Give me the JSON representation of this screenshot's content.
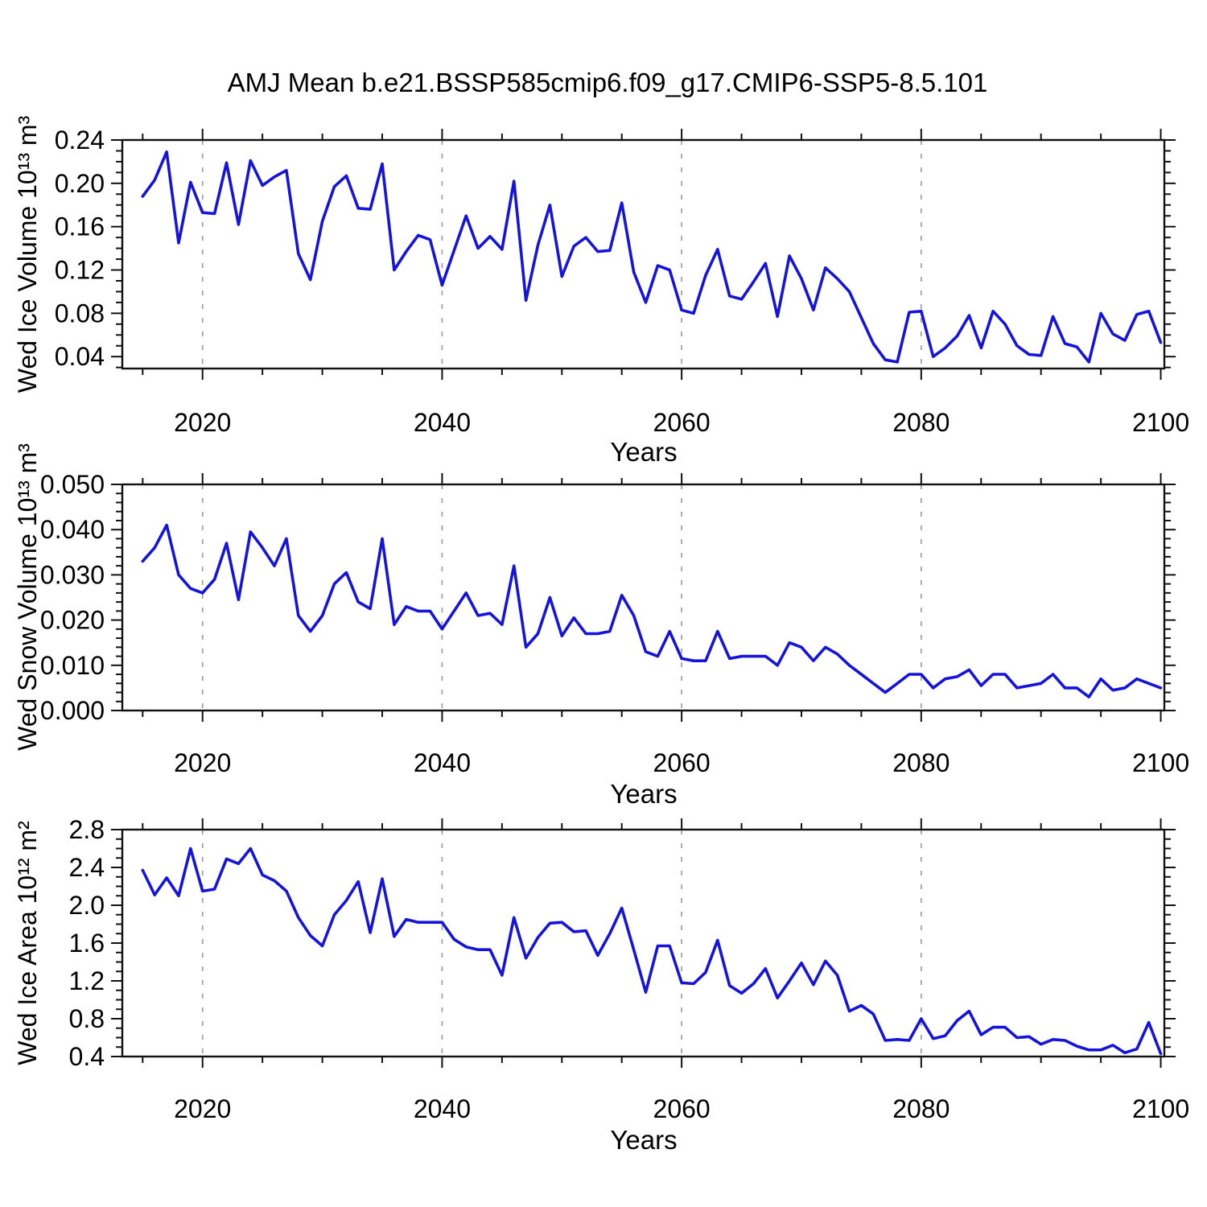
{
  "title": "AMJ Mean b.e21.BSSP585cmip6.f09_g17.CMIP6-SSP5-8.5.101",
  "colors": {
    "line": "#1414DC",
    "axis": "#111111",
    "grid": "#999999",
    "text": "#000000",
    "background": "#ffffff"
  },
  "chart_data": {
    "type": "line",
    "xlabel": "Years",
    "xlim": [
      2013.3,
      2100.3
    ],
    "x_ticks": [
      "2020",
      "2040",
      "2060",
      "2080",
      "2100"
    ],
    "x_minor_step": 5,
    "grid_years": [
      2020,
      2040,
      2060,
      2080
    ],
    "grid": "vertical-dashed",
    "legend_position": "none",
    "x": [
      2015,
      2016,
      2017,
      2018,
      2019,
      2020,
      2021,
      2022,
      2023,
      2024,
      2025,
      2026,
      2027,
      2028,
      2029,
      2030,
      2031,
      2032,
      2033,
      2034,
      2035,
      2036,
      2037,
      2038,
      2039,
      2040,
      2041,
      2042,
      2043,
      2044,
      2045,
      2046,
      2047,
      2048,
      2049,
      2050,
      2051,
      2052,
      2053,
      2054,
      2055,
      2056,
      2057,
      2058,
      2059,
      2060,
      2061,
      2062,
      2063,
      2064,
      2065,
      2066,
      2067,
      2068,
      2069,
      2070,
      2071,
      2072,
      2073,
      2074,
      2075,
      2076,
      2077,
      2078,
      2079,
      2080,
      2081,
      2082,
      2083,
      2084,
      2085,
      2086,
      2087,
      2088,
      2089,
      2090,
      2091,
      2092,
      2093,
      2094,
      2095,
      2096,
      2097,
      2098,
      2099,
      2100
    ],
    "series": [
      {
        "name": "Wed Ice Volume",
        "ylabel": "Wed Ice Volume 10¹³ m³",
        "ylim": [
          0.029,
          0.24
        ],
        "y_ticks": [
          "0.04",
          "0.08",
          "0.12",
          "0.16",
          "0.20",
          "0.24"
        ],
        "y_minor_step": 0.01,
        "values": [
          0.188,
          0.203,
          0.229,
          0.145,
          0.201,
          0.173,
          0.172,
          0.219,
          0.162,
          0.221,
          0.198,
          0.206,
          0.212,
          0.135,
          0.111,
          0.165,
          0.197,
          0.207,
          0.177,
          0.176,
          0.218,
          0.12,
          0.137,
          0.152,
          0.148,
          0.106,
          0.138,
          0.17,
          0.14,
          0.151,
          0.139,
          0.202,
          0.092,
          0.143,
          0.18,
          0.114,
          0.142,
          0.15,
          0.137,
          0.138,
          0.182,
          0.118,
          0.09,
          0.124,
          0.12,
          0.083,
          0.08,
          0.115,
          0.139,
          0.096,
          0.093,
          0.109,
          0.126,
          0.077,
          0.133,
          0.112,
          0.083,
          0.122,
          0.112,
          0.1,
          0.076,
          0.052,
          0.037,
          0.035,
          0.081,
          0.082,
          0.04,
          0.048,
          0.059,
          0.078,
          0.048,
          0.082,
          0.07,
          0.05,
          0.042,
          0.041,
          0.077,
          0.052,
          0.049,
          0.035,
          0.08,
          0.061,
          0.055,
          0.079,
          0.082,
          0.053
        ]
      },
      {
        "name": "Wed Snow Volume",
        "ylabel": "Wed Snow Volume 10¹³ m³",
        "ylim": [
          0.0,
          0.05
        ],
        "y_ticks": [
          "0.000",
          "0.010",
          "0.020",
          "0.030",
          "0.040",
          "0.050"
        ],
        "y_minor_step": 0.002,
        "values": [
          0.033,
          0.036,
          0.041,
          0.03,
          0.027,
          0.026,
          0.029,
          0.037,
          0.0245,
          0.0395,
          0.036,
          0.032,
          0.038,
          0.021,
          0.0175,
          0.021,
          0.028,
          0.0305,
          0.024,
          0.0225,
          0.038,
          0.019,
          0.023,
          0.022,
          0.022,
          0.018,
          0.022,
          0.026,
          0.021,
          0.0215,
          0.019,
          0.032,
          0.014,
          0.017,
          0.025,
          0.0165,
          0.0205,
          0.017,
          0.017,
          0.0175,
          0.0255,
          0.021,
          0.013,
          0.012,
          0.0175,
          0.0115,
          0.011,
          0.011,
          0.0175,
          0.0115,
          0.012,
          0.012,
          0.012,
          0.01,
          0.015,
          0.014,
          0.011,
          0.014,
          0.0125,
          0.01,
          0.008,
          0.006,
          0.004,
          0.006,
          0.008,
          0.008,
          0.005,
          0.007,
          0.0075,
          0.009,
          0.0055,
          0.008,
          0.008,
          0.005,
          0.0055,
          0.006,
          0.008,
          0.005,
          0.005,
          0.003,
          0.007,
          0.0045,
          0.005,
          0.007,
          0.006,
          0.005
        ]
      },
      {
        "name": "Wed Ice Area",
        "ylabel": "Wed Ice Area 10¹² m²",
        "ylim": [
          0.4,
          2.8
        ],
        "y_ticks": [
          "0.4",
          "0.8",
          "1.2",
          "1.6",
          "2.0",
          "2.4",
          "2.8"
        ],
        "y_minor_step": 0.1,
        "values": [
          2.37,
          2.11,
          2.29,
          2.1,
          2.6,
          2.15,
          2.17,
          2.49,
          2.44,
          2.6,
          2.32,
          2.26,
          2.15,
          1.87,
          1.68,
          1.57,
          1.9,
          2.05,
          2.25,
          1.71,
          2.28,
          1.67,
          1.85,
          1.82,
          1.82,
          1.82,
          1.64,
          1.56,
          1.53,
          1.53,
          1.26,
          1.87,
          1.44,
          1.66,
          1.81,
          1.82,
          1.72,
          1.73,
          1.47,
          1.7,
          1.97,
          1.53,
          1.08,
          1.57,
          1.57,
          1.18,
          1.17,
          1.29,
          1.63,
          1.15,
          1.07,
          1.17,
          1.33,
          1.02,
          1.2,
          1.39,
          1.16,
          1.41,
          1.26,
          0.88,
          0.94,
          0.85,
          0.57,
          0.58,
          0.57,
          0.8,
          0.59,
          0.62,
          0.78,
          0.88,
          0.63,
          0.71,
          0.71,
          0.6,
          0.61,
          0.53,
          0.58,
          0.57,
          0.51,
          0.47,
          0.47,
          0.52,
          0.44,
          0.48,
          0.76,
          0.43
        ]
      }
    ]
  }
}
